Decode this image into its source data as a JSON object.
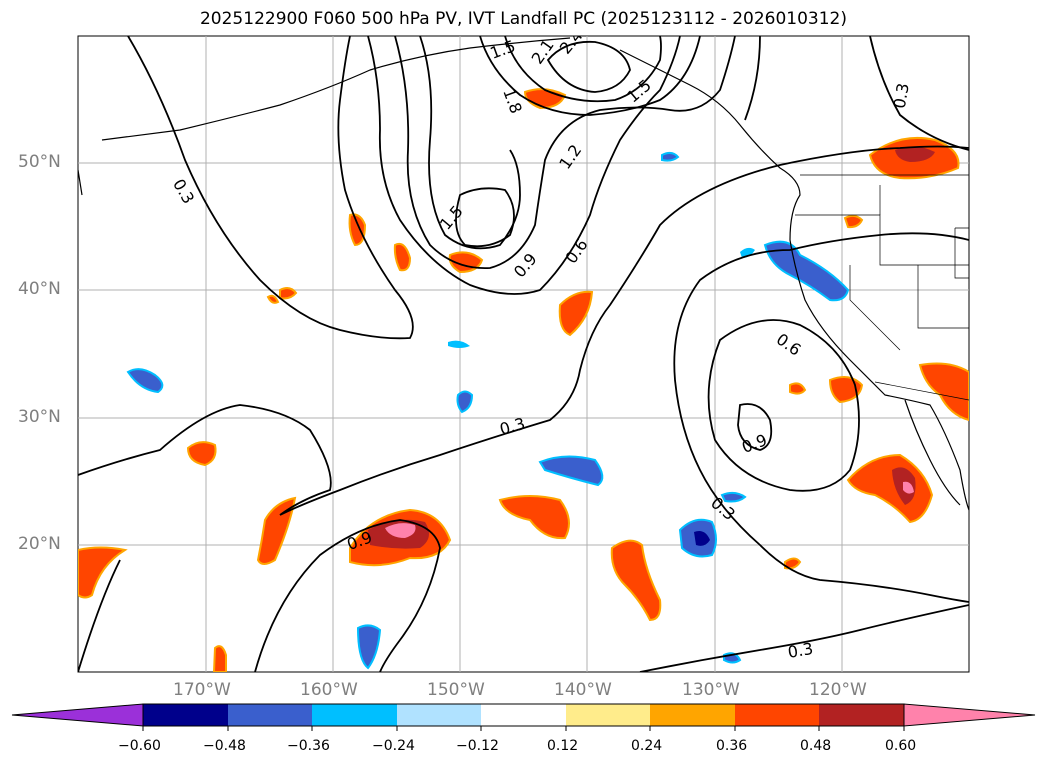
{
  "title": "2025122900 F060 500 hPa PV, IVT Landfall PC (2025123112 - 2026010312)",
  "lat_labels": [
    "50°N",
    "40°N",
    "30°N",
    "20°N"
  ],
  "lon_labels": [
    "170°W",
    "160°W",
    "150°W",
    "140°W",
    "130°W",
    "120°W"
  ],
  "contour_labels": [
    "1.5",
    "2.1",
    "2.4",
    "1.8",
    "1.5",
    "1.2",
    "1.5",
    "0.9",
    "0.6",
    "0.3",
    "0.3",
    "0.6",
    "0.9",
    "0.3",
    "0.9",
    "0.3",
    "0.3"
  ],
  "colorbar": {
    "ticks": [
      "−0.60",
      "−0.48",
      "−0.36",
      "−0.24",
      "−0.12",
      "0.12",
      "0.24",
      "0.36",
      "0.48",
      "0.60"
    ],
    "colors": [
      "#9b30d9",
      "#00008b",
      "#3a5fcd",
      "#00bfff",
      "#b0e2ff",
      "#ffffff",
      "#ffec8b",
      "#ffa500",
      "#ff4500",
      "#b22222",
      "#ff82ab"
    ]
  }
}
